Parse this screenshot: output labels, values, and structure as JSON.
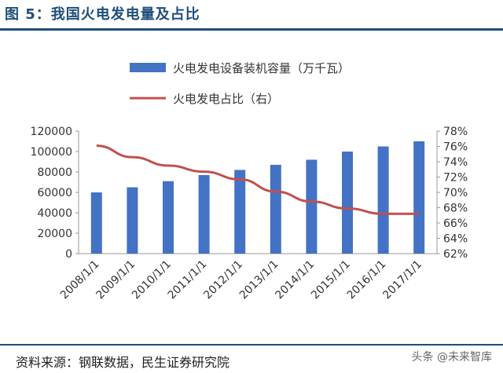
{
  "header": {
    "title": "图 5：我国火电发电量及占比"
  },
  "footer": {
    "source": "资料来源：钢联数据，民生证券研究院",
    "watermark": "头条 @未来智库"
  },
  "colors": {
    "bar": "#4472c4",
    "line": "#c0504d",
    "accent": "#1f4e79"
  },
  "chart_data": {
    "type": "bar",
    "title": "",
    "categories": [
      "2008/1/1",
      "2009/1/1",
      "2010/1/1",
      "2011/1/1",
      "2012/1/1",
      "2013/1/1",
      "2014/1/1",
      "2015/1/1",
      "2016/1/1",
      "2017/1/1"
    ],
    "series": [
      {
        "name": "火电发电设备装机容量（万千瓦）",
        "type": "bar",
        "axis": "left",
        "values": [
          60000,
          65000,
          71000,
          77000,
          82000,
          87000,
          92000,
          100000,
          105000,
          110000
        ]
      },
      {
        "name": "火电发电占比（右）",
        "type": "line",
        "axis": "right",
        "values": [
          0.761,
          0.746,
          0.735,
          0.727,
          0.717,
          0.701,
          0.688,
          0.679,
          0.672,
          0.672
        ]
      }
    ],
    "yleft": {
      "ylim": [
        0,
        120000
      ],
      "ticks": [
        "0",
        "20000",
        "40000",
        "60000",
        "80000",
        "100000",
        "120000"
      ]
    },
    "yright": {
      "ylim": [
        0.62,
        0.78
      ],
      "ticks": [
        "62%",
        "64%",
        "66%",
        "68%",
        "70%",
        "72%",
        "74%",
        "76%",
        "78%"
      ]
    },
    "legend": "top",
    "grid": false
  }
}
